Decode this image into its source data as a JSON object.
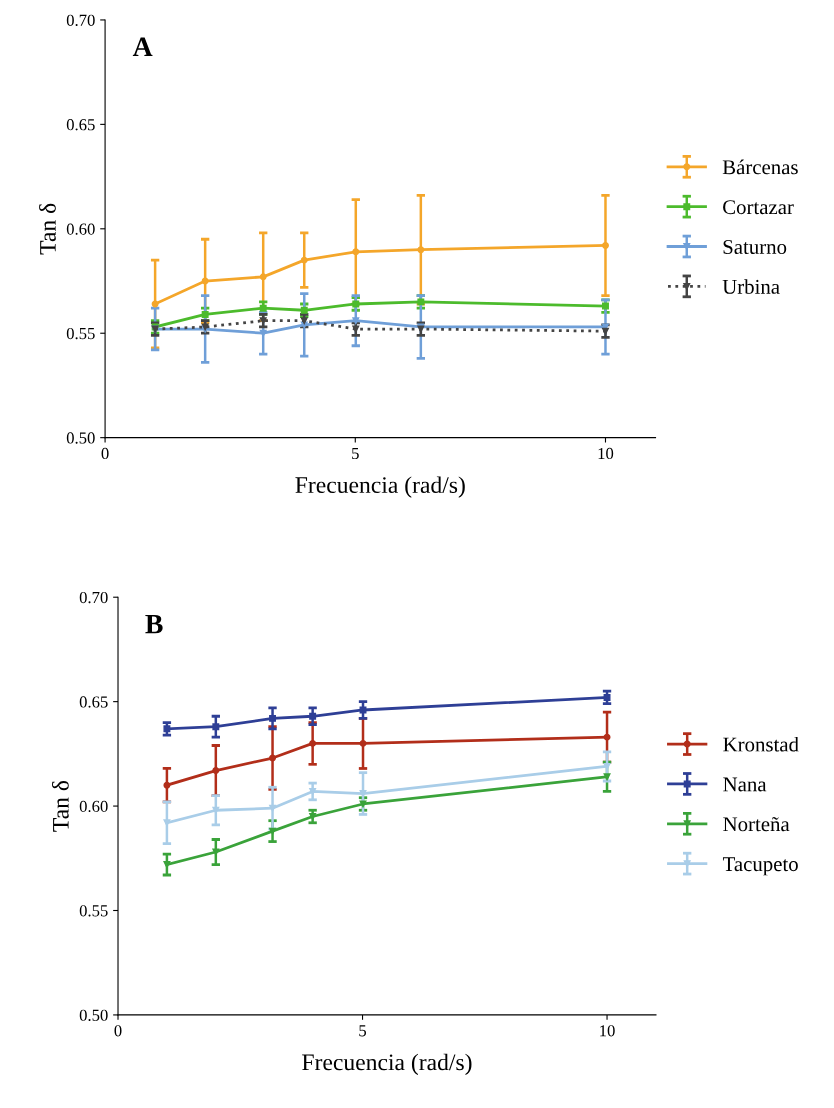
{
  "chart_data": [
    {
      "type": "line",
      "title": "A",
      "xlabel": "Frecuencia (rad/s)",
      "ylabel": "Tan δ",
      "x": [
        1,
        2,
        3.16,
        3.98,
        5.01,
        6.31,
        10
      ],
      "xlim": [
        0,
        11
      ],
      "xticks": [
        0,
        5,
        10
      ],
      "ylim": [
        0.5,
        0.7
      ],
      "yticks": [
        {
          "value": 0.5,
          "label": "0.50"
        },
        {
          "value": 0.55,
          "label": "0.55"
        },
        {
          "value": 0.6,
          "label": "0.60"
        },
        {
          "value": 0.65,
          "label": "0.65"
        },
        {
          "value": 0.7,
          "label": "0.70"
        }
      ],
      "grid": false,
      "legend": "right",
      "series": [
        {
          "name": "Bárcenas",
          "color": "#f4a62a",
          "marker": "circle",
          "line_style": "solid",
          "values": [
            0.564,
            0.575,
            0.577,
            0.585,
            0.589,
            0.59,
            0.592
          ],
          "errors": [
            0.021,
            0.02,
            0.021,
            0.013,
            0.025,
            0.026,
            0.024
          ]
        },
        {
          "name": "Cortazar",
          "color": "#4cbb2c",
          "marker": "square",
          "line_style": "solid",
          "values": [
            0.553,
            0.559,
            0.562,
            0.561,
            0.564,
            0.565,
            0.563
          ],
          "errors": [
            0.003,
            0.003,
            0.003,
            0.003,
            0.003,
            0.003,
            0.003
          ]
        },
        {
          "name": "Saturno",
          "color": "#6f9fd8",
          "marker": "triangle",
          "line_style": "solid",
          "values": [
            0.552,
            0.552,
            0.55,
            0.554,
            0.556,
            0.553,
            0.553
          ],
          "errors": [
            0.01,
            0.016,
            0.01,
            0.015,
            0.012,
            0.015,
            0.013
          ]
        },
        {
          "name": "Urbina",
          "color": "#444444",
          "marker": "triangle",
          "line_style": "dotted",
          "values": [
            0.552,
            0.553,
            0.556,
            0.556,
            0.552,
            0.552,
            0.551
          ],
          "errors": [
            0.003,
            0.003,
            0.003,
            0.003,
            0.003,
            0.003,
            0.003
          ]
        }
      ]
    },
    {
      "type": "line",
      "title": "B",
      "xlabel": "Frecuencia (rad/s)",
      "ylabel": "Tan δ",
      "x": [
        1,
        2,
        3.16,
        3.98,
        5.01,
        10
      ],
      "xlim": [
        0,
        11
      ],
      "xticks": [
        0,
        5,
        10
      ],
      "ylim": [
        0.5,
        0.7
      ],
      "yticks": [
        {
          "value": 0.5,
          "label": "0.50"
        },
        {
          "value": 0.55,
          "label": "0.55"
        },
        {
          "value": 0.6,
          "label": "0.60"
        },
        {
          "value": 0.65,
          "label": "0.65"
        },
        {
          "value": 0.7,
          "label": "0.70"
        }
      ],
      "grid": false,
      "legend": "right",
      "series": [
        {
          "name": "Kronstad",
          "color": "#b22e1a",
          "marker": "circle",
          "line_style": "solid",
          "values": [
            0.61,
            0.617,
            0.623,
            0.63,
            0.63,
            0.633
          ],
          "errors": [
            0.008,
            0.012,
            0.015,
            0.01,
            0.012,
            0.012
          ]
        },
        {
          "name": "Nana",
          "color": "#2e3f96",
          "marker": "square",
          "line_style": "solid",
          "values": [
            0.637,
            0.638,
            0.642,
            0.643,
            0.646,
            0.652
          ],
          "errors": [
            0.003,
            0.005,
            0.005,
            0.004,
            0.004,
            0.003
          ]
        },
        {
          "name": "Norteña",
          "color": "#3aa33a",
          "marker": "triangle",
          "line_style": "solid",
          "values": [
            0.572,
            0.578,
            0.588,
            0.595,
            0.601,
            0.614
          ],
          "errors": [
            0.005,
            0.006,
            0.005,
            0.003,
            0.003,
            0.007
          ]
        },
        {
          "name": "Tacupeto",
          "color": "#a9cde8",
          "marker": "triangle",
          "line_style": "solid",
          "values": [
            0.592,
            0.598,
            0.599,
            0.607,
            0.606,
            0.619
          ],
          "errors": [
            0.01,
            0.007,
            0.01,
            0.004,
            0.01,
            0.007
          ]
        }
      ]
    }
  ]
}
